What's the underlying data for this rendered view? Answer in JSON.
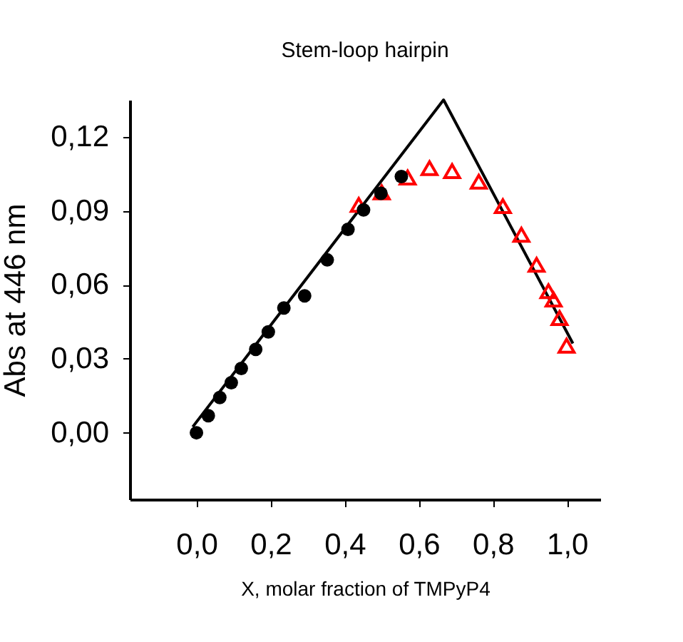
{
  "chart_data": {
    "type": "scatter",
    "title": "Stem-loop hairpin",
    "xlabel": "X, molar fraction of TMPyP4",
    "ylabel": "Abs at 446 nm",
    "xlim": [
      -0.18,
      1.09
    ],
    "ylim": [
      -0.027,
      0.135
    ],
    "xticks": [
      {
        "value": 0,
        "label": "0,0"
      },
      {
        "value": 0.2,
        "label": "0,2"
      },
      {
        "value": 0.4,
        "label": "0,4"
      },
      {
        "value": 0.6,
        "label": "0,6"
      },
      {
        "value": 0.8,
        "label": "0,8"
      },
      {
        "value": 1,
        "label": "1,0"
      }
    ],
    "yticks": [
      {
        "value": 0,
        "label": "0,00"
      },
      {
        "value": 0.03,
        "label": "0,03"
      },
      {
        "value": 0.06,
        "label": "0,06"
      },
      {
        "value": 0.09,
        "label": "0,09"
      },
      {
        "value": 0.12,
        "label": "0,12"
      }
    ],
    "grid": false,
    "series": [
      {
        "type": "line",
        "color": "#000000",
        "marker": "none",
        "line_style": "solid",
        "x": [
          -0.01,
          0.667,
          1.016
        ],
        "values": [
          0.0024,
          0.135,
          0.0362
        ]
      },
      {
        "color": "#ff0000",
        "marker": "triangle",
        "x": [
          0.438,
          0.5,
          0.57,
          0.629,
          0.69,
          0.762,
          0.827,
          0.877,
          0.918,
          0.95,
          0.964,
          0.98,
          0.999
        ],
        "values": [
          0.0924,
          0.0975,
          0.1035,
          0.1073,
          0.1061,
          0.1018,
          0.0919,
          0.0803,
          0.0681,
          0.0574,
          0.054,
          0.0465,
          0.0353
        ]
      },
      {
        "color": "#000000",
        "marker": "circle",
        "x": [
          0,
          0.032,
          0.063,
          0.094,
          0.121,
          0.16,
          0.194,
          0.236,
          0.292,
          0.353,
          0.409,
          0.451,
          0.498,
          0.553
        ],
        "values": [
          0,
          0.0069,
          0.0143,
          0.0203,
          0.0261,
          0.0338,
          0.0409,
          0.0506,
          0.0555,
          0.0701,
          0.0825,
          0.0904,
          0.0971,
          0.1039
        ]
      }
    ]
  }
}
